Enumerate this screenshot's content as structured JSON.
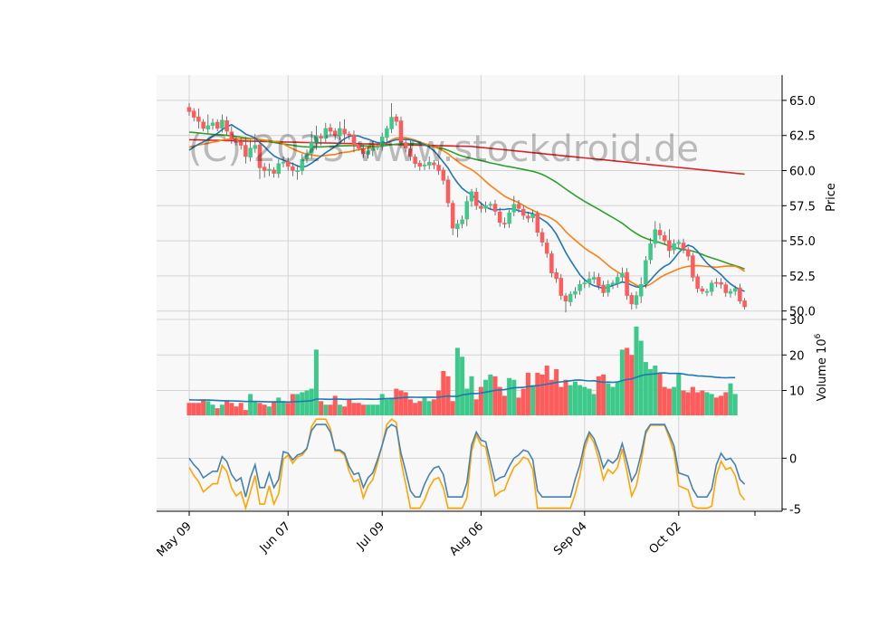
{
  "watermark": "(C) 2023 www.stockdroid.de",
  "colors": {
    "up": "#3cc98a",
    "down": "#ff5b5b",
    "ma_short": "#1f77b4",
    "ma_mid": "#ff7f0e",
    "ma_long": "#2ca02c",
    "ma_200": "#d62728",
    "vol_ma": "#1f77b4",
    "osc_a": "#4682b4",
    "osc_b": "#ffa500",
    "panel_bg": "#f8f8f8",
    "grid": "#d4d4d4"
  },
  "chart_data": [
    {
      "type": "candlestick",
      "panel": "price",
      "ylabel": "Price",
      "ylim": [
        49.4,
        66.8
      ],
      "yticks": [
        "50.0",
        "52.5",
        "55.0",
        "57.5",
        "60.0",
        "62.5",
        "65.0"
      ],
      "xticks": [
        {
          "label": "May 09",
          "index": 0
        },
        {
          "label": "Jun 07",
          "index": 21
        },
        {
          "label": "Jul 09",
          "index": 41
        },
        {
          "label": "Aug 06",
          "index": 62
        },
        {
          "label": "Sep 04",
          "index": 84
        },
        {
          "label": "Oct 02",
          "index": 104
        }
      ],
      "close": [
        64.2,
        63.8,
        63.5,
        63.0,
        63.2,
        63.4,
        63.0,
        63.6,
        62.8,
        62.2,
        62.0,
        61.8,
        61.0,
        61.6,
        61.8,
        60.2,
        60.0,
        60.1,
        59.8,
        60.5,
        60.6,
        60.3,
        60.0,
        60.0,
        60.8,
        61.2,
        62.0,
        62.5,
        62.3,
        63.0,
        62.8,
        62.5,
        63.0,
        62.6,
        62.5,
        61.8,
        61.6,
        61.2,
        61.4,
        61.6,
        61.7,
        62.4,
        63.0,
        63.8,
        63.5,
        62.0,
        61.6,
        61.0,
        60.5,
        60.3,
        60.4,
        60.6,
        60.4,
        60.0,
        59.3,
        57.7,
        55.9,
        56.2,
        56.5,
        57.8,
        58.5,
        57.5,
        57.3,
        57.5,
        57.6,
        57.1,
        56.3,
        56.2,
        57.0,
        57.6,
        57.3,
        56.8,
        56.6,
        56.9,
        55.6,
        54.9,
        54.1,
        52.7,
        52.3,
        51.1,
        50.7,
        51.2,
        51.4,
        51.9,
        52.0,
        52.3,
        52.4,
        51.8,
        51.3,
        51.9,
        52.0,
        52.4,
        52.7,
        51.1,
        50.5,
        51.1,
        51.9,
        53.6,
        54.8,
        55.8,
        55.4,
        55.0,
        54.3,
        54.8,
        54.9,
        54.4,
        53.9,
        52.4,
        51.6,
        51.4,
        51.4,
        52.0,
        52.0,
        51.9,
        51.3,
        51.4,
        51.6,
        50.7,
        50.3
      ],
      "high_offset": [
        0.3,
        0.2,
        0.6,
        0.2,
        0.8,
        0.3,
        0.2,
        0.4,
        0.3,
        0.4,
        0.2,
        0.3,
        0.6,
        0.6,
        0.8,
        0.3,
        0.3,
        0.4,
        0.2,
        0.3,
        0.4,
        0.3,
        0.3,
        0.4,
        0.4,
        0.3,
        0.8,
        0.7,
        0.2,
        0.4,
        0.3,
        0.2,
        0.5,
        0.7,
        0.2,
        0.3,
        0.2,
        0.3,
        0.3,
        0.5,
        0.2,
        0.3,
        0.2,
        1.0,
        0.2,
        0.3,
        0.3,
        0.6,
        0.2,
        0.2,
        0.3,
        0.4,
        0.2,
        0.3,
        0.2,
        0.3,
        0.2,
        0.3,
        0.3,
        0.4,
        0.2,
        0.3,
        0.3,
        0.3,
        0.2,
        0.3,
        0.3,
        0.4,
        0.2,
        0.6,
        0.3,
        0.3,
        0.3,
        0.3,
        0.2,
        0.3,
        0.3,
        0.2,
        0.3,
        0.3,
        0.2,
        0.2,
        0.3,
        0.3,
        0.3,
        0.5,
        0.4,
        0.3,
        0.3,
        0.3,
        0.2,
        0.3,
        0.4,
        0.3,
        0.2,
        0.3,
        0.5,
        0.3,
        0.4,
        0.6,
        0.5,
        0.3,
        0.8,
        0.3,
        0.2,
        0.3,
        0.2,
        0.2,
        0.2,
        0.2,
        0.2,
        0.2,
        0.3,
        0.3,
        0.2,
        0.2,
        0.2,
        0.3,
        0.2
      ],
      "low_offset": [
        0.3,
        0.3,
        0.5,
        0.2,
        0.3,
        0.3,
        0.2,
        0.3,
        0.3,
        0.3,
        0.2,
        0.3,
        0.5,
        0.3,
        0.3,
        0.8,
        0.5,
        0.4,
        0.3,
        0.3,
        0.3,
        0.3,
        0.4,
        0.6,
        0.3,
        0.3,
        0.4,
        0.5,
        0.5,
        0.3,
        0.3,
        0.3,
        0.3,
        0.6,
        0.3,
        0.5,
        0.2,
        0.3,
        0.3,
        0.4,
        0.2,
        0.3,
        0.4,
        0.3,
        0.3,
        0.4,
        0.3,
        0.3,
        0.3,
        0.3,
        0.3,
        0.3,
        0.3,
        0.3,
        0.3,
        0.3,
        0.5,
        0.6,
        0.3,
        0.5,
        0.4,
        0.3,
        0.3,
        0.3,
        0.3,
        0.3,
        0.3,
        0.3,
        0.3,
        0.3,
        0.3,
        0.3,
        0.3,
        0.3,
        0.3,
        0.3,
        0.3,
        0.3,
        0.3,
        0.3,
        0.8,
        0.3,
        0.3,
        0.3,
        0.3,
        0.3,
        0.3,
        0.3,
        0.3,
        0.3,
        0.3,
        0.3,
        0.3,
        0.3,
        0.4,
        0.3,
        0.5,
        0.3,
        0.3,
        0.3,
        0.3,
        0.3,
        0.5,
        0.3,
        0.3,
        0.3,
        0.3,
        0.3,
        0.3,
        0.2,
        0.3,
        0.3,
        0.3,
        0.3,
        0.3,
        0.3,
        0.3,
        0.2,
        0.2
      ]
    },
    {
      "type": "bar",
      "panel": "volume",
      "ylabel": "Volume  10^6",
      "ylim": [
        3,
        30
      ],
      "yticks": [
        "10",
        "20",
        "30"
      ],
      "values": [
        6.5,
        6.5,
        6.5,
        7.5,
        7,
        6,
        5,
        6,
        7,
        6.5,
        5.5,
        6.5,
        4.5,
        9,
        7,
        6.5,
        6,
        5.5,
        7,
        8,
        7,
        6.5,
        9,
        9,
        9.5,
        10,
        10.5,
        21.5,
        7,
        6,
        6,
        8.5,
        6,
        5.5,
        7.5,
        6.5,
        6.5,
        6,
        6,
        6,
        6,
        9,
        7.5,
        8,
        10.5,
        10,
        9.5,
        7.5,
        6.5,
        7,
        8,
        7,
        7.5,
        10,
        15.5,
        14,
        7,
        22,
        19.5,
        10.5,
        14,
        7.5,
        11,
        13,
        14.5,
        14,
        11,
        8.5,
        13.5,
        13,
        8,
        10.5,
        15,
        11.5,
        15,
        14.5,
        17,
        13,
        16,
        11,
        13,
        11.5,
        12.5,
        11.5,
        11,
        10.5,
        9,
        14,
        14.5,
        12,
        11,
        12.5,
        21.5,
        22,
        20,
        28,
        24,
        18,
        16,
        17,
        15,
        11,
        10.5,
        11,
        15,
        10,
        9.5,
        11,
        9.5,
        10,
        9.5,
        9,
        8,
        8.5,
        9.5,
        12,
        9
      ]
    },
    {
      "type": "line",
      "panel": "oscillator",
      "ylim": [
        -5.2,
        4.2
      ],
      "yticks": [
        "-5",
        "0"
      ]
    }
  ]
}
